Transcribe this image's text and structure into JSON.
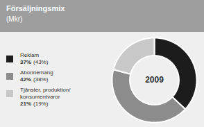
{
  "chart_data": {
    "type": "donut",
    "title": "Försäljningsmix",
    "subtitle": "(Mkr)",
    "categories": [
      "Reklam",
      "Abonnemang",
      "Tjänster, produktion/\nkonsumentvaror"
    ],
    "values": [
      37,
      42,
      21
    ],
    "value_labels": [
      "37%",
      "42%",
      "21%"
    ],
    "previous_values": [
      43,
      38,
      19
    ],
    "previous_value_labels": [
      "(43%)",
      "(38%)",
      "(19%)"
    ],
    "colors": [
      "#1c1c1c",
      "#8c8c8c",
      "#c8c8c8"
    ],
    "center_label": "2009",
    "legend": "left",
    "tick_labels": false
  }
}
